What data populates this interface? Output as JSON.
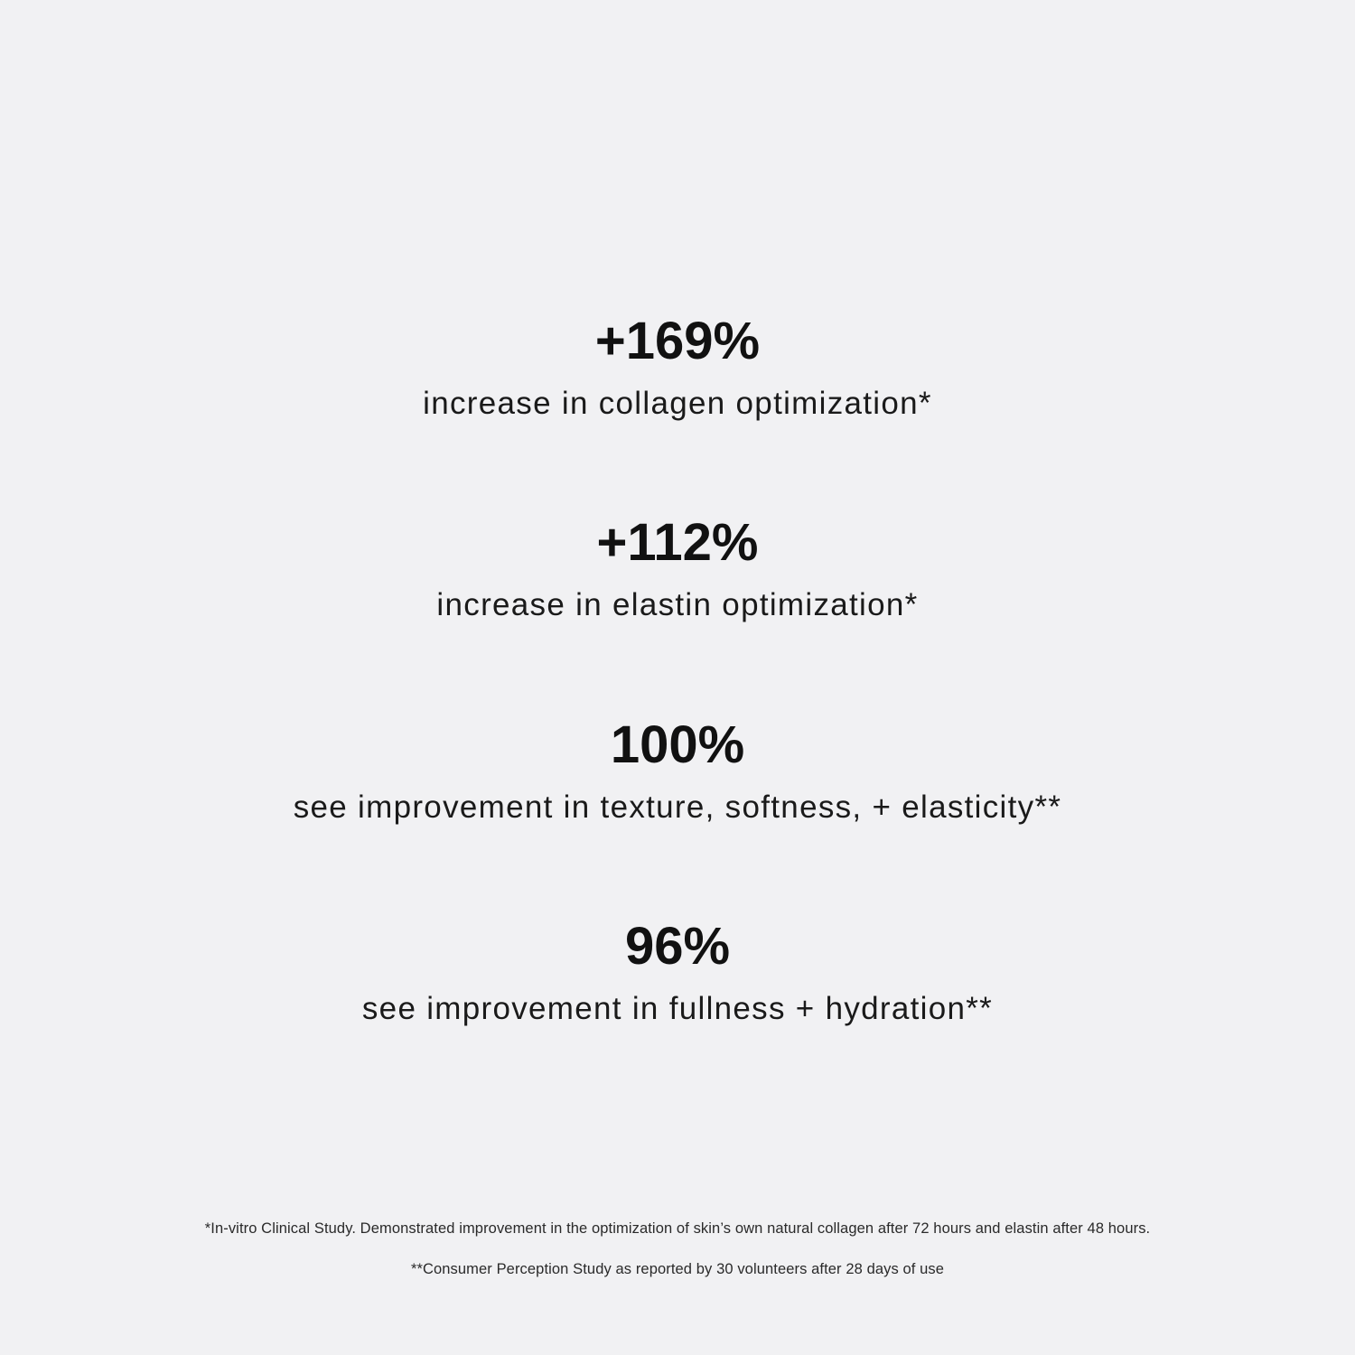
{
  "stats": [
    {
      "value": "+169%",
      "label": "increase in collagen optimization*"
    },
    {
      "value": "+112%",
      "label": "increase in elastin optimization*"
    },
    {
      "value": "100%",
      "label": "see improvement in texture, softness, + elasticity**"
    },
    {
      "value": "96%",
      "label": "see improvement in fullness + hydration**"
    }
  ],
  "footnotes": [
    "*In-vitro Clinical Study. Demonstrated improvement in the optimization of skin’s own natural collagen after 72 hours and elastin after 48 hours.",
    "**Consumer Perception Study as reported by 30 volunteers after 28 days of use"
  ],
  "colors": {
    "background": "#f1f1f3",
    "text": "#111111"
  }
}
